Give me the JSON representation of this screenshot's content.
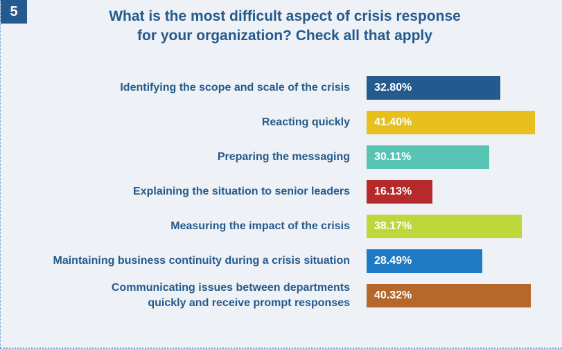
{
  "badge": "5",
  "title_lines": [
    "What is the most difficult aspect of crisis response",
    "for your organization? Check all that apply"
  ],
  "chart_data": {
    "type": "bar",
    "orientation": "horizontal",
    "title": "What is the most difficult aspect of crisis response for your organization? Check all that apply",
    "categories": [
      [
        "Identifying the scope and scale of the crisis"
      ],
      [
        "Reacting quickly"
      ],
      [
        "Preparing the messaging"
      ],
      [
        "Explaining the situation to senior leaders"
      ],
      [
        "Measuring the impact of the crisis"
      ],
      [
        "Maintaining business continuity during a crisis situation"
      ],
      [
        "Communicating issues between departments",
        "quickly and receive prompt responses"
      ]
    ],
    "values": [
      32.8,
      41.4,
      30.11,
      16.13,
      38.17,
      28.49,
      40.32
    ],
    "value_labels": [
      "32.80%",
      "41.40%",
      "30.11%",
      "16.13%",
      "38.17%",
      "28.49%",
      "40.32%"
    ],
    "colors": [
      "#245a8d",
      "#e8c01e",
      "#57c4b4",
      "#b52a2a",
      "#bed73b",
      "#1e7ac2",
      "#b5682a"
    ],
    "grid": false,
    "legend": "none"
  }
}
